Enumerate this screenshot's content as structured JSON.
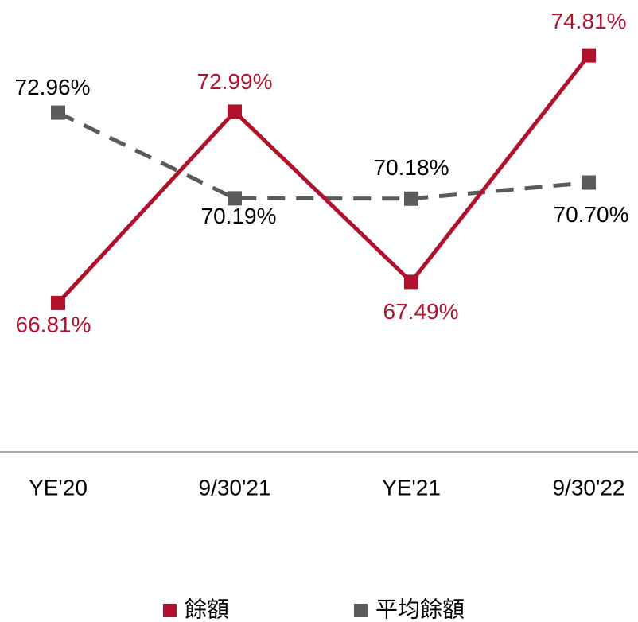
{
  "chart_data": {
    "type": "line",
    "categories": [
      "YE'20",
      "9/30'21",
      "YE'21",
      "9/30'22"
    ],
    "series": [
      {
        "name": "餘額",
        "color": "#b0122e",
        "values": [
          66.81,
          72.99,
          67.49,
          74.81
        ],
        "value_labels": [
          "66.81%",
          "72.99%",
          "67.49%",
          "74.81%"
        ]
      },
      {
        "name": "平均餘額",
        "color": "#5b5b5b",
        "dashed": true,
        "values": [
          72.96,
          70.19,
          70.18,
          70.7
        ],
        "value_labels": [
          "72.96%",
          "70.19%",
          "70.18%",
          "70.70%"
        ]
      }
    ],
    "ylim": [
      62,
      76.6
    ],
    "legend": "bottom"
  }
}
